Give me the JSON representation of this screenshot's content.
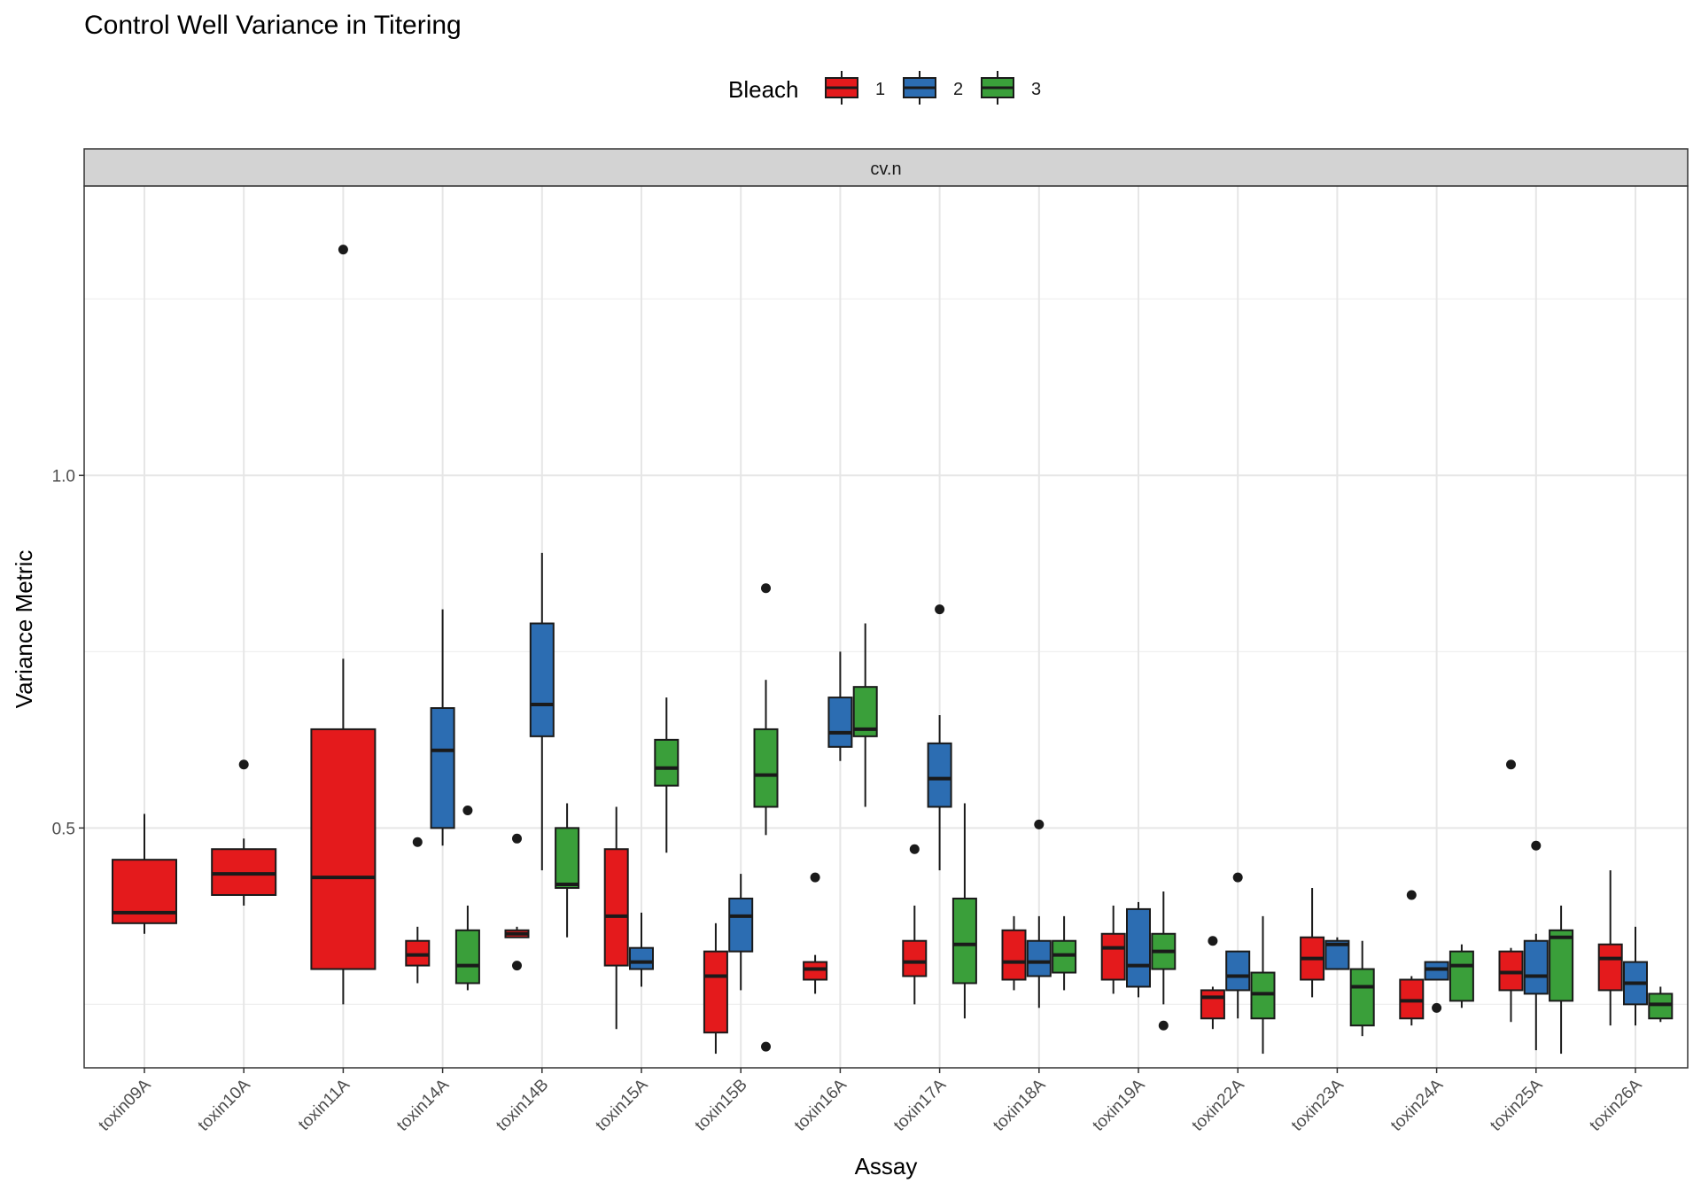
{
  "colors": {
    "1": "#E41A1C",
    "2": "#2C6DB2",
    "3": "#3A9F3A",
    "strip": "#d3d3d3",
    "grid": "#e6e6e6"
  },
  "chart_data": {
    "type": "boxplot",
    "title": "Control Well Variance in Titering",
    "xlabel": "Assay",
    "ylabel": "Variance Metric",
    "facet": "cv.n",
    "legend": {
      "title": "Bleach",
      "position": "top",
      "entries": [
        "1",
        "2",
        "3"
      ]
    },
    "ylim": [
      0.16,
      1.41
    ],
    "yticks": [
      0.5,
      1.0
    ],
    "ytick_labels": [
      "0.5",
      "1.0"
    ],
    "grid": true,
    "categories": [
      "toxin09A",
      "toxin10A",
      "toxin11A",
      "toxin14A",
      "toxin14B",
      "toxin15A",
      "toxin15B",
      "toxin16A",
      "toxin17A",
      "toxin18A",
      "toxin19A",
      "toxin22A",
      "toxin23A",
      "toxin24A",
      "toxin25A",
      "toxin26A"
    ],
    "boxes": [
      {
        "assay": "toxin09A",
        "bleach": "1",
        "width": 1,
        "q1": 0.365,
        "median": 0.38,
        "q3": 0.455,
        "low": 0.35,
        "high": 0.52,
        "outliers": []
      },
      {
        "assay": "toxin10A",
        "bleach": "1",
        "width": 1,
        "q1": 0.405,
        "median": 0.435,
        "q3": 0.47,
        "low": 0.39,
        "high": 0.485,
        "outliers": [
          0.59
        ]
      },
      {
        "assay": "toxin11A",
        "bleach": "1",
        "width": 1,
        "q1": 0.3,
        "median": 0.43,
        "q3": 0.64,
        "low": 0.25,
        "high": 0.74,
        "outliers": [
          1.32
        ]
      },
      {
        "assay": "toxin14A",
        "bleach": "1",
        "width": 1,
        "q1": 0.305,
        "median": 0.32,
        "q3": 0.34,
        "low": 0.28,
        "high": 0.36,
        "outliers": [
          0.48
        ]
      },
      {
        "assay": "toxin14A",
        "bleach": "2",
        "width": 1,
        "q1": 0.5,
        "median": 0.61,
        "q3": 0.67,
        "low": 0.475,
        "high": 0.81,
        "outliers": []
      },
      {
        "assay": "toxin14A",
        "bleach": "3",
        "width": 1,
        "q1": 0.28,
        "median": 0.305,
        "q3": 0.355,
        "low": 0.27,
        "high": 0.39,
        "outliers": [
          0.525
        ]
      },
      {
        "assay": "toxin14B",
        "bleach": "1",
        "width": 1,
        "q1": 0.345,
        "median": 0.35,
        "q3": 0.355,
        "low": 0.345,
        "high": 0.36,
        "outliers": [
          0.485,
          0.305
        ]
      },
      {
        "assay": "toxin14B",
        "bleach": "2",
        "width": 1,
        "q1": 0.63,
        "median": 0.675,
        "q3": 0.79,
        "low": 0.44,
        "high": 0.89,
        "outliers": []
      },
      {
        "assay": "toxin14B",
        "bleach": "3",
        "width": 1,
        "q1": 0.415,
        "median": 0.42,
        "q3": 0.5,
        "low": 0.345,
        "high": 0.535,
        "outliers": []
      },
      {
        "assay": "toxin15A",
        "bleach": "1",
        "width": 1,
        "q1": 0.305,
        "median": 0.375,
        "q3": 0.47,
        "low": 0.215,
        "high": 0.53,
        "outliers": []
      },
      {
        "assay": "toxin15A",
        "bleach": "2",
        "width": 1,
        "q1": 0.3,
        "median": 0.31,
        "q3": 0.33,
        "low": 0.275,
        "high": 0.38,
        "outliers": []
      },
      {
        "assay": "toxin15A",
        "bleach": "3",
        "width": 1,
        "q1": 0.56,
        "median": 0.585,
        "q3": 0.625,
        "low": 0.465,
        "high": 0.685,
        "outliers": []
      },
      {
        "assay": "toxin15B",
        "bleach": "1",
        "width": 1,
        "q1": 0.21,
        "median": 0.29,
        "q3": 0.325,
        "low": 0.18,
        "high": 0.365,
        "outliers": []
      },
      {
        "assay": "toxin15B",
        "bleach": "2",
        "width": 1,
        "q1": 0.325,
        "median": 0.375,
        "q3": 0.4,
        "low": 0.27,
        "high": 0.435,
        "outliers": []
      },
      {
        "assay": "toxin15B",
        "bleach": "3",
        "width": 1,
        "q1": 0.53,
        "median": 0.575,
        "q3": 0.64,
        "low": 0.49,
        "high": 0.71,
        "outliers": [
          0.84,
          0.19
        ]
      },
      {
        "assay": "toxin16A",
        "bleach": "1",
        "width": 1,
        "q1": 0.285,
        "median": 0.3,
        "q3": 0.31,
        "low": 0.265,
        "high": 0.32,
        "outliers": [
          0.43
        ]
      },
      {
        "assay": "toxin16A",
        "bleach": "2",
        "width": 1,
        "q1": 0.615,
        "median": 0.635,
        "q3": 0.685,
        "low": 0.595,
        "high": 0.75,
        "outliers": []
      },
      {
        "assay": "toxin16A",
        "bleach": "3",
        "width": 1,
        "q1": 0.63,
        "median": 0.64,
        "q3": 0.7,
        "low": 0.53,
        "high": 0.79,
        "outliers": []
      },
      {
        "assay": "toxin17A",
        "bleach": "1",
        "width": 1,
        "q1": 0.29,
        "median": 0.31,
        "q3": 0.34,
        "low": 0.25,
        "high": 0.39,
        "outliers": [
          0.47
        ]
      },
      {
        "assay": "toxin17A",
        "bleach": "2",
        "width": 1,
        "q1": 0.53,
        "median": 0.57,
        "q3": 0.62,
        "low": 0.44,
        "high": 0.66,
        "outliers": [
          0.81
        ]
      },
      {
        "assay": "toxin17A",
        "bleach": "3",
        "width": 1,
        "q1": 0.28,
        "median": 0.335,
        "q3": 0.4,
        "low": 0.23,
        "high": 0.535,
        "outliers": []
      },
      {
        "assay": "toxin18A",
        "bleach": "1",
        "width": 1,
        "q1": 0.285,
        "median": 0.31,
        "q3": 0.355,
        "low": 0.27,
        "high": 0.375,
        "outliers": []
      },
      {
        "assay": "toxin18A",
        "bleach": "2",
        "width": 1,
        "q1": 0.29,
        "median": 0.31,
        "q3": 0.34,
        "low": 0.245,
        "high": 0.375,
        "outliers": [
          0.505
        ]
      },
      {
        "assay": "toxin18A",
        "bleach": "3",
        "width": 1,
        "q1": 0.295,
        "median": 0.32,
        "q3": 0.34,
        "low": 0.27,
        "high": 0.375,
        "outliers": []
      },
      {
        "assay": "toxin19A",
        "bleach": "1",
        "width": 1,
        "q1": 0.285,
        "median": 0.33,
        "q3": 0.35,
        "low": 0.265,
        "high": 0.39,
        "outliers": []
      },
      {
        "assay": "toxin19A",
        "bleach": "2",
        "width": 1,
        "q1": 0.275,
        "median": 0.305,
        "q3": 0.385,
        "low": 0.26,
        "high": 0.395,
        "outliers": []
      },
      {
        "assay": "toxin19A",
        "bleach": "3",
        "width": 1,
        "q1": 0.3,
        "median": 0.325,
        "q3": 0.35,
        "low": 0.25,
        "high": 0.41,
        "outliers": [
          0.22
        ]
      },
      {
        "assay": "toxin22A",
        "bleach": "1",
        "width": 1,
        "q1": 0.23,
        "median": 0.26,
        "q3": 0.27,
        "low": 0.215,
        "high": 0.275,
        "outliers": [
          0.34
        ]
      },
      {
        "assay": "toxin22A",
        "bleach": "2",
        "width": 1,
        "q1": 0.27,
        "median": 0.29,
        "q3": 0.325,
        "low": 0.23,
        "high": 0.325,
        "outliers": [
          0.43
        ]
      },
      {
        "assay": "toxin22A",
        "bleach": "3",
        "width": 1,
        "q1": 0.23,
        "median": 0.265,
        "q3": 0.295,
        "low": 0.18,
        "high": 0.375,
        "outliers": []
      },
      {
        "assay": "toxin23A",
        "bleach": "1",
        "width": 1,
        "q1": 0.285,
        "median": 0.315,
        "q3": 0.345,
        "low": 0.26,
        "high": 0.415,
        "outliers": []
      },
      {
        "assay": "toxin23A",
        "bleach": "2",
        "width": 1,
        "q1": 0.3,
        "median": 0.335,
        "q3": 0.34,
        "low": 0.3,
        "high": 0.345,
        "outliers": []
      },
      {
        "assay": "toxin23A",
        "bleach": "3",
        "width": 1,
        "q1": 0.22,
        "median": 0.275,
        "q3": 0.3,
        "low": 0.205,
        "high": 0.34,
        "outliers": []
      },
      {
        "assay": "toxin24A",
        "bleach": "1",
        "width": 1,
        "q1": 0.23,
        "median": 0.255,
        "q3": 0.285,
        "low": 0.22,
        "high": 0.29,
        "outliers": [
          0.405
        ]
      },
      {
        "assay": "toxin24A",
        "bleach": "2",
        "width": 1,
        "q1": 0.285,
        "median": 0.3,
        "q3": 0.31,
        "low": 0.285,
        "high": 0.31,
        "outliers": [
          0.245
        ]
      },
      {
        "assay": "toxin24A",
        "bleach": "3",
        "width": 1,
        "q1": 0.255,
        "median": 0.305,
        "q3": 0.325,
        "low": 0.245,
        "high": 0.335,
        "outliers": []
      },
      {
        "assay": "toxin25A",
        "bleach": "1",
        "width": 1,
        "q1": 0.27,
        "median": 0.295,
        "q3": 0.325,
        "low": 0.225,
        "high": 0.33,
        "outliers": [
          0.59
        ]
      },
      {
        "assay": "toxin25A",
        "bleach": "2",
        "width": 1,
        "q1": 0.265,
        "median": 0.29,
        "q3": 0.34,
        "low": 0.185,
        "high": 0.35,
        "outliers": [
          0.475
        ]
      },
      {
        "assay": "toxin25A",
        "bleach": "3",
        "width": 1,
        "q1": 0.255,
        "median": 0.345,
        "q3": 0.355,
        "low": 0.18,
        "high": 0.39,
        "outliers": []
      },
      {
        "assay": "toxin26A",
        "bleach": "1",
        "width": 1,
        "q1": 0.27,
        "median": 0.315,
        "q3": 0.335,
        "low": 0.22,
        "high": 0.44,
        "outliers": []
      },
      {
        "assay": "toxin26A",
        "bleach": "2",
        "width": 1,
        "q1": 0.25,
        "median": 0.28,
        "q3": 0.31,
        "low": 0.22,
        "high": 0.36,
        "outliers": []
      },
      {
        "assay": "toxin26A",
        "bleach": "3",
        "width": 1,
        "q1": 0.23,
        "median": 0.25,
        "q3": 0.265,
        "low": 0.225,
        "high": 0.275,
        "outliers": []
      }
    ]
  }
}
